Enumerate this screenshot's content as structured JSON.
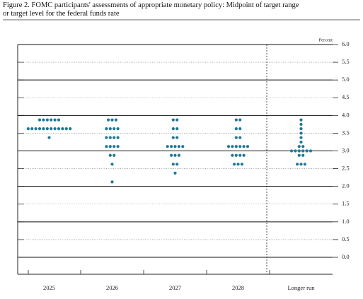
{
  "chart_data": {
    "type": "dot",
    "title_lines": [
      "Figure 2. FOMC participants' assessments of appropriate monetary policy: Midpoint of target range",
      "or target level for the federal funds rate"
    ],
    "y_unit": "Percent",
    "categories": [
      "2025",
      "2026",
      "2027",
      "2028",
      "Longer run"
    ],
    "values": [
      [
        3.875,
        3.875,
        3.875,
        3.875,
        3.875,
        3.875,
        3.625,
        3.625,
        3.625,
        3.625,
        3.625,
        3.625,
        3.625,
        3.625,
        3.625,
        3.625,
        3.625,
        3.625,
        3.375
      ],
      [
        3.875,
        3.875,
        3.875,
        3.625,
        3.625,
        3.625,
        3.625,
        3.375,
        3.375,
        3.375,
        3.375,
        3.125,
        3.125,
        3.125,
        3.125,
        2.875,
        2.875,
        2.625,
        2.125
      ],
      [
        3.875,
        3.875,
        3.625,
        3.625,
        3.375,
        3.375,
        3.125,
        3.125,
        3.125,
        3.125,
        3.125,
        2.875,
        2.875,
        2.875,
        2.625,
        2.625,
        2.375
      ],
      [
        3.875,
        3.875,
        3.625,
        3.625,
        3.375,
        3.375,
        3.125,
        3.125,
        3.125,
        3.125,
        3.125,
        3.125,
        2.875,
        2.875,
        2.875,
        2.875,
        2.625,
        2.625,
        2.625
      ],
      [
        3.875,
        3.75,
        3.625,
        3.5,
        3.375,
        3.25,
        3.125,
        3.125,
        3,
        3,
        3,
        3,
        3,
        3,
        2.875,
        2.875,
        2.625,
        2.625,
        2.625
      ]
    ],
    "color": "#1f7896",
    "ylim": [
      0,
      6
    ],
    "yticks": [
      {
        "value": 0,
        "label": "0.0"
      },
      0.5,
      {
        "value": 1,
        "label": "1.0"
      },
      1.5,
      {
        "value": 2,
        "label": "2.0"
      },
      2.5,
      {
        "value": 3,
        "label": "3.0"
      },
      3.5,
      {
        "value": 4,
        "label": "4.0"
      },
      4.5,
      {
        "value": 5,
        "label": "5.0"
      },
      5.5,
      {
        "value": 6,
        "label": "6.0"
      }
    ],
    "grid": true,
    "separator_before": "Longer run"
  }
}
